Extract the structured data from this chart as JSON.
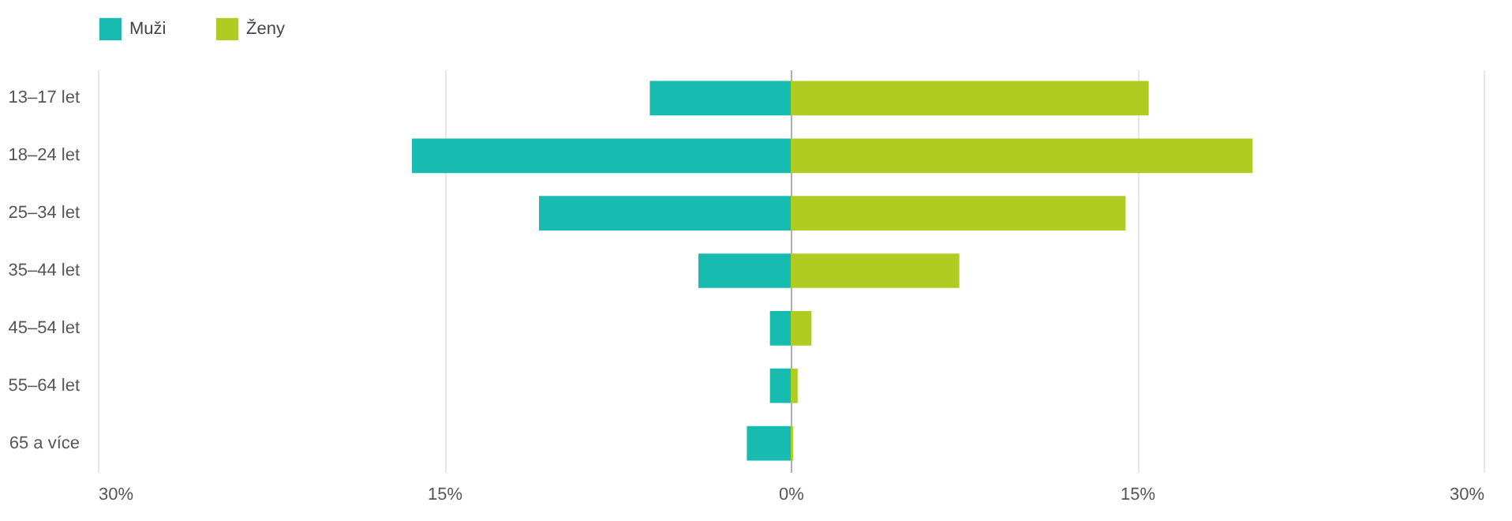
{
  "chart_data": {
    "type": "bar",
    "orientation": "horizontal",
    "stacked": true,
    "categories": [
      "13–17 let",
      "18–24 let",
      "25–34 let",
      "35–44 let",
      "45–54 let",
      "55–64 let",
      "65 a více"
    ],
    "series": [
      {
        "name": "Muži",
        "color": "#17bbb0",
        "values": [
          -6.1,
          -16.4,
          -10.9,
          -4.0,
          -0.9,
          -0.9,
          -1.9
        ]
      },
      {
        "name": "Ženy",
        "color": "#b0cb22",
        "values": [
          15.5,
          20.0,
          14.5,
          7.3,
          0.9,
          0.3,
          0.1
        ]
      }
    ],
    "xlim": [
      -30,
      30
    ],
    "xticks": [
      {
        "value": -30,
        "label": "30%"
      },
      {
        "value": -15,
        "label": "15%"
      },
      {
        "value": 0,
        "label": "0%"
      },
      {
        "value": 15,
        "label": "15%"
      },
      {
        "value": 30,
        "label": "30%"
      }
    ],
    "grid": "x",
    "legend": "top left"
  }
}
